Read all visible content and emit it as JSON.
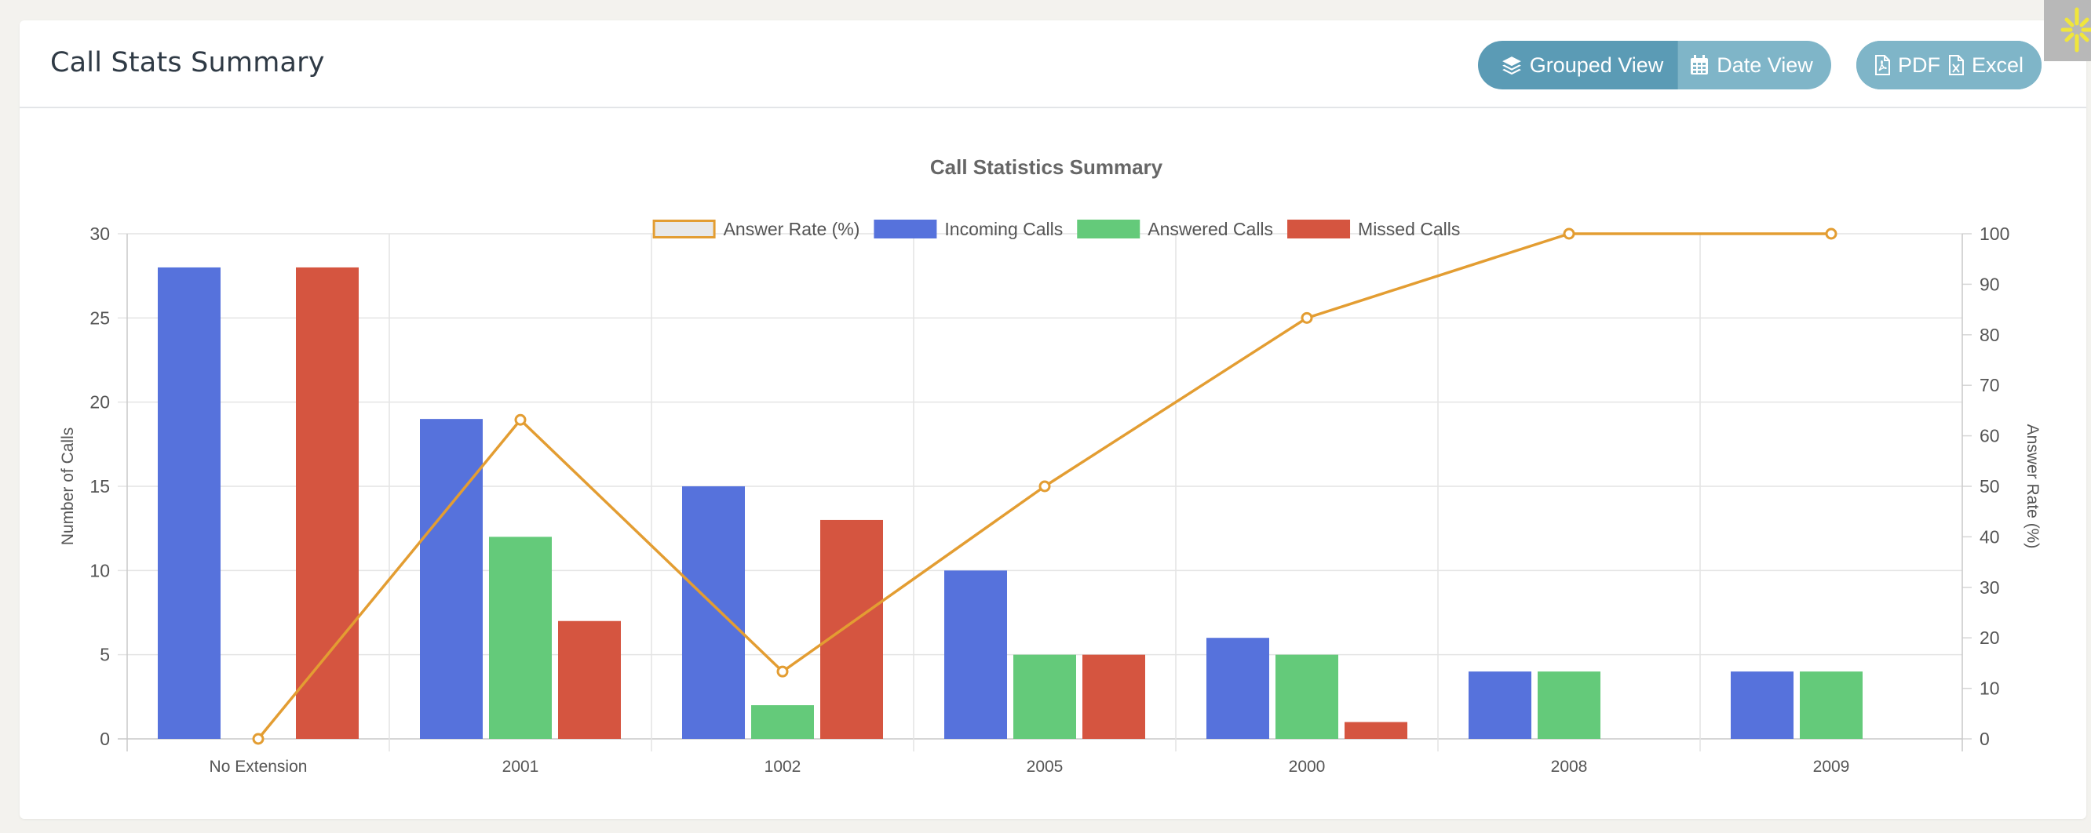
{
  "header": {
    "title": "Call Stats Summary",
    "grouped_view_label": "Grouped View",
    "date_view_label": "Date View",
    "pdf_label": "PDF",
    "excel_label": "Excel"
  },
  "colors": {
    "incoming": "#5672dc",
    "answered": "#64ca7a",
    "missed": "#d55540",
    "answer_rate": "#e39d32",
    "button_active": "#5b9bb5",
    "button": "#7fb5c8"
  },
  "chart_data": {
    "type": "bar",
    "title": "Call Statistics Summary",
    "categories": [
      "No Extension",
      "2001",
      "1002",
      "2005",
      "2000",
      "2008",
      "2009"
    ],
    "series": [
      {
        "name": "Incoming Calls",
        "type": "bar",
        "axis": "left",
        "values": [
          28,
          19,
          15,
          10,
          6,
          4,
          4
        ]
      },
      {
        "name": "Answered Calls",
        "type": "bar",
        "axis": "left",
        "values": [
          0,
          12,
          2,
          5,
          5,
          4,
          4
        ]
      },
      {
        "name": "Missed Calls",
        "type": "bar",
        "axis": "left",
        "values": [
          28,
          7,
          13,
          5,
          1,
          0,
          0
        ]
      },
      {
        "name": "Answer Rate (%)",
        "type": "line",
        "axis": "right",
        "values": [
          0,
          63.16,
          13.33,
          50,
          83.33,
          100,
          100
        ]
      }
    ],
    "legend_order": [
      "Answer Rate (%)",
      "Incoming Calls",
      "Answered Calls",
      "Missed Calls"
    ],
    "ylabel": "Number of Calls",
    "ylim": [
      0,
      30
    ],
    "yticks": [
      0,
      5,
      10,
      15,
      20,
      25,
      30
    ],
    "y2label": "Answer Rate (%)",
    "y2lim": [
      0,
      100
    ],
    "y2ticks": [
      0,
      10,
      20,
      30,
      40,
      50,
      60,
      70,
      80,
      90,
      100
    ],
    "grid": true,
    "legend_position": "top"
  }
}
